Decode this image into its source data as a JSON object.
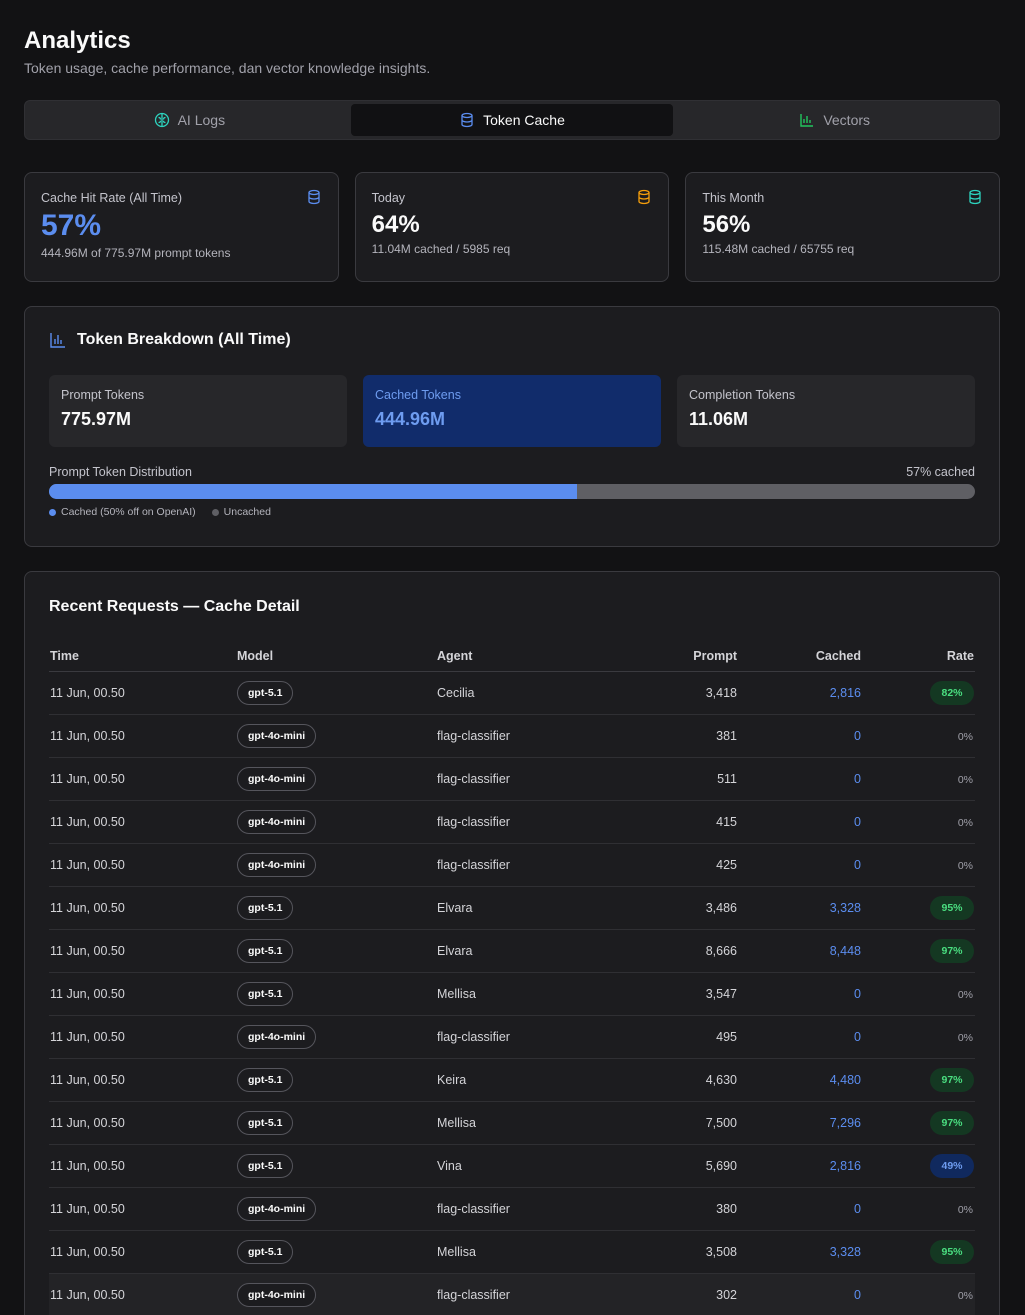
{
  "header": {
    "title": "Analytics",
    "subtitle": "Token usage, cache performance, dan vector knowledge insights."
  },
  "tabs": [
    {
      "label": "AI Logs",
      "icon": "brain-icon",
      "active": false
    },
    {
      "label": "Token Cache",
      "icon": "database-icon",
      "active": true
    },
    {
      "label": "Vectors",
      "icon": "bar-chart-icon",
      "active": false
    }
  ],
  "stats": [
    {
      "label": "Cache Hit Rate (All Time)",
      "value": "57%",
      "sub": "444.96M of 775.97M prompt tokens",
      "icon": "database-icon",
      "icon_color": "#5b8def"
    },
    {
      "label": "Today",
      "value": "64%",
      "sub": "11.04M cached / 5985 req",
      "icon": "database-icon",
      "icon_color": "#f59e0b"
    },
    {
      "label": "This Month",
      "value": "56%",
      "sub": "115.48M cached / 65755 req",
      "icon": "database-icon",
      "icon_color": "#2dd4bf"
    }
  ],
  "breakdown": {
    "title": "Token Breakdown (All Time)",
    "tiles": [
      {
        "label": "Prompt Tokens",
        "value": "775.97M"
      },
      {
        "label": "Cached Tokens",
        "value": "444.96M"
      },
      {
        "label": "Completion Tokens",
        "value": "11.06M"
      }
    ],
    "distribution_label": "Prompt Token Distribution",
    "cached_percent_label": "57% cached",
    "cached_fraction": 0.57,
    "legend_cached": "Cached (50% off on OpenAI)",
    "legend_uncached": "Uncached",
    "colors": {
      "cached": "#5b8def",
      "uncached": "#5f5f64"
    }
  },
  "requests": {
    "title": "Recent Requests — Cache Detail",
    "columns": [
      "Time",
      "Model",
      "Agent",
      "Prompt",
      "Cached",
      "Rate"
    ],
    "rows": [
      {
        "time": "11 Jun, 00.50",
        "model": "gpt-5.1",
        "agent": "Cecilia",
        "prompt": "3,418",
        "cached": "2,816",
        "rate": "82%",
        "rate_style": "green"
      },
      {
        "time": "11 Jun, 00.50",
        "model": "gpt-4o-mini",
        "agent": "flag-classifier",
        "prompt": "381",
        "cached": "0",
        "rate": "0%",
        "rate_style": "plain"
      },
      {
        "time": "11 Jun, 00.50",
        "model": "gpt-4o-mini",
        "agent": "flag-classifier",
        "prompt": "511",
        "cached": "0",
        "rate": "0%",
        "rate_style": "plain"
      },
      {
        "time": "11 Jun, 00.50",
        "model": "gpt-4o-mini",
        "agent": "flag-classifier",
        "prompt": "415",
        "cached": "0",
        "rate": "0%",
        "rate_style": "plain"
      },
      {
        "time": "11 Jun, 00.50",
        "model": "gpt-4o-mini",
        "agent": "flag-classifier",
        "prompt": "425",
        "cached": "0",
        "rate": "0%",
        "rate_style": "plain"
      },
      {
        "time": "11 Jun, 00.50",
        "model": "gpt-5.1",
        "agent": "Elvara",
        "prompt": "3,486",
        "cached": "3,328",
        "rate": "95%",
        "rate_style": "green"
      },
      {
        "time": "11 Jun, 00.50",
        "model": "gpt-5.1",
        "agent": "Elvara",
        "prompt": "8,666",
        "cached": "8,448",
        "rate": "97%",
        "rate_style": "green"
      },
      {
        "time": "11 Jun, 00.50",
        "model": "gpt-5.1",
        "agent": "Mellisa",
        "prompt": "3,547",
        "cached": "0",
        "rate": "0%",
        "rate_style": "plain"
      },
      {
        "time": "11 Jun, 00.50",
        "model": "gpt-4o-mini",
        "agent": "flag-classifier",
        "prompt": "495",
        "cached": "0",
        "rate": "0%",
        "rate_style": "plain"
      },
      {
        "time": "11 Jun, 00.50",
        "model": "gpt-5.1",
        "agent": "Keira",
        "prompt": "4,630",
        "cached": "4,480",
        "rate": "97%",
        "rate_style": "green"
      },
      {
        "time": "11 Jun, 00.50",
        "model": "gpt-5.1",
        "agent": "Mellisa",
        "prompt": "7,500",
        "cached": "7,296",
        "rate": "97%",
        "rate_style": "green"
      },
      {
        "time": "11 Jun, 00.50",
        "model": "gpt-5.1",
        "agent": "Vina",
        "prompt": "5,690",
        "cached": "2,816",
        "rate": "49%",
        "rate_style": "blue"
      },
      {
        "time": "11 Jun, 00.50",
        "model": "gpt-4o-mini",
        "agent": "flag-classifier",
        "prompt": "380",
        "cached": "0",
        "rate": "0%",
        "rate_style": "plain"
      },
      {
        "time": "11 Jun, 00.50",
        "model": "gpt-5.1",
        "agent": "Mellisa",
        "prompt": "3,508",
        "cached": "3,328",
        "rate": "95%",
        "rate_style": "green"
      },
      {
        "time": "11 Jun, 00.50",
        "model": "gpt-4o-mini",
        "agent": "flag-classifier",
        "prompt": "302",
        "cached": "0",
        "rate": "0%",
        "rate_style": "plain"
      }
    ]
  }
}
